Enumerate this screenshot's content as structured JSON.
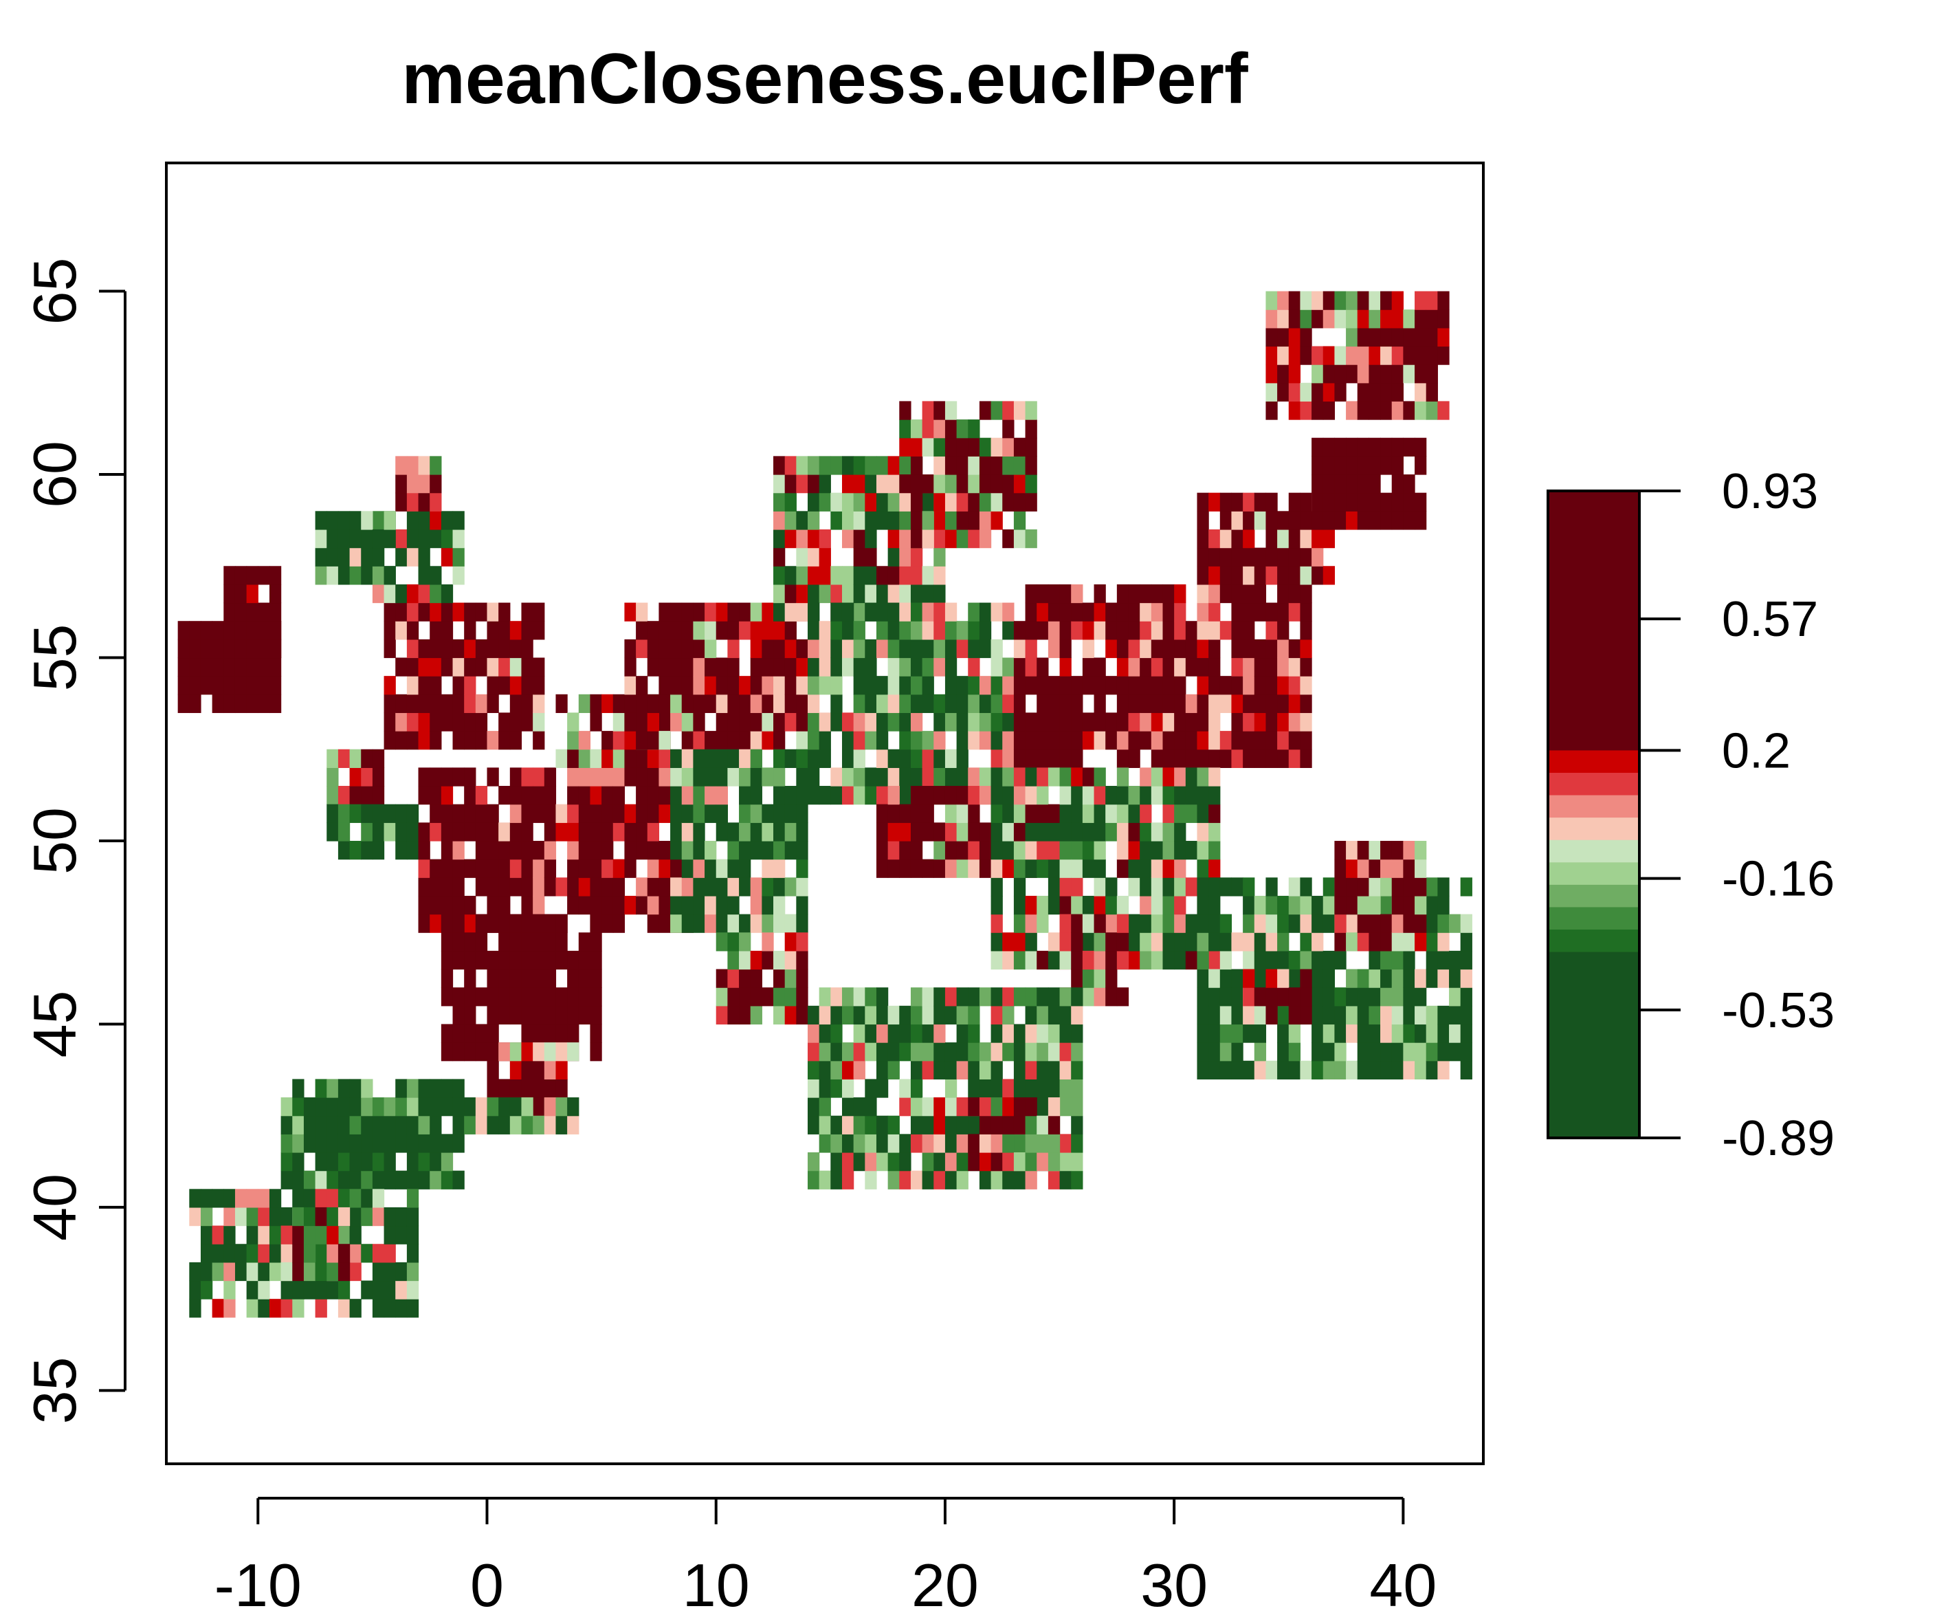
{
  "chart_data": {
    "type": "heatmap",
    "title": "meanCloseness.euclPerf",
    "xlabel": "",
    "ylabel": "",
    "xlim": [
      -14,
      43.5
    ],
    "ylim": [
      33,
      68.5
    ],
    "x_ticks": [
      -10,
      0,
      10,
      20,
      30,
      40
    ],
    "x_tick_labels": [
      "-10",
      "0",
      "10",
      "20",
      "30",
      "40"
    ],
    "y_ticks": [
      35,
      40,
      45,
      50,
      55,
      60,
      65
    ],
    "y_tick_labels": [
      "35",
      "40",
      "45",
      "50",
      "55",
      "60",
      "65"
    ],
    "grid": false,
    "legend_position": "right",
    "colorbar": {
      "ticks": [
        0.93,
        0.57,
        0.2,
        -0.16,
        -0.53,
        -0.89
      ],
      "tick_labels": [
        "0.93",
        "0.57",
        "0.2",
        "-0.16",
        "-0.53",
        "-0.89"
      ],
      "value_range": [
        -0.89,
        0.93
      ],
      "bands": [
        {
          "from": 0.2,
          "to": 0.93,
          "color": "#67000d"
        },
        {
          "from": 0.137,
          "to": 0.2,
          "color": "#cc0000"
        },
        {
          "from": 0.074,
          "to": 0.137,
          "color": "#e0393e"
        },
        {
          "from": 0.011,
          "to": 0.074,
          "color": "#ef8a82"
        },
        {
          "from": -0.052,
          "to": 0.011,
          "color": "#f8c6b4"
        },
        {
          "from": -0.115,
          "to": -0.052,
          "color": "#c7e4bd"
        },
        {
          "from": -0.178,
          "to": -0.115,
          "color": "#a0d190"
        },
        {
          "from": -0.241,
          "to": -0.178,
          "color": "#6fad63"
        },
        {
          "from": -0.304,
          "to": -0.241,
          "color": "#3f8b3c"
        },
        {
          "from": -0.367,
          "to": -0.304,
          "color": "#1f6e23"
        },
        {
          "from": -0.89,
          "to": -0.367,
          "color": "#16541f"
        }
      ]
    },
    "cell_size_deg": 0.5,
    "regions": [
      {
        "lon": [
          -13.5,
          -9
        ],
        "lat": [
          53.5,
          56
        ],
        "level": 0.8
      },
      {
        "lon": [
          -11.5,
          -9
        ],
        "lat": [
          55,
          57.5
        ],
        "level": 0.6
      },
      {
        "lon": [
          -4.5,
          2.5
        ],
        "lat": [
          52.5,
          56.5
        ],
        "level": 0.35
      },
      {
        "lon": [
          -5,
          -1
        ],
        "lat": [
          56.5,
          59
        ],
        "level": -0.2
      },
      {
        "lon": [
          -4,
          -2
        ],
        "lat": [
          59,
          60.5
        ],
        "level": 0.05
      },
      {
        "lon": [
          -7.5,
          -4
        ],
        "lat": [
          57,
          59
        ],
        "level": -0.4
      },
      {
        "lon": [
          -7,
          -4.5
        ],
        "lat": [
          51,
          52.5
        ],
        "level": 0.25
      },
      {
        "lon": [
          -7,
          -3
        ],
        "lat": [
          49.5,
          51
        ],
        "level": -0.6
      },
      {
        "lon": [
          -3,
          9
        ],
        "lat": [
          47.5,
          52
        ],
        "level": 0.45
      },
      {
        "lon": [
          -2,
          5
        ],
        "lat": [
          44,
          48
        ],
        "level": 0.7
      },
      {
        "lon": [
          0,
          4
        ],
        "lat": [
          42.5,
          44.5
        ],
        "level": 0.25
      },
      {
        "lon": [
          3,
          8
        ],
        "lat": [
          52,
          54
        ],
        "level": 0.2
      },
      {
        "lon": [
          6,
          14
        ],
        "lat": [
          52.5,
          56.5
        ],
        "level": 0.3
      },
      {
        "lon": [
          8,
          14
        ],
        "lat": [
          47.5,
          52.5
        ],
        "level": -0.4
      },
      {
        "lon": [
          12.5,
          20
        ],
        "lat": [
          56,
          60.5
        ],
        "level": -0.15
      },
      {
        "lon": [
          18,
          24
        ],
        "lat": [
          58,
          62
        ],
        "level": 0.1
      },
      {
        "lon": [
          14,
          23
        ],
        "lat": [
          51,
          56.5
        ],
        "level": -0.3
      },
      {
        "lon": [
          17,
          24
        ],
        "lat": [
          49,
          51.5
        ],
        "level": 0.25
      },
      {
        "lon": [
          23,
          36
        ],
        "lat": [
          52,
          57
        ],
        "level": 0.4
      },
      {
        "lon": [
          31,
          37
        ],
        "lat": [
          57,
          59.5
        ],
        "level": 0.35
      },
      {
        "lon": [
          22,
          32
        ],
        "lat": [
          46.5,
          52
        ],
        "level": -0.2
      },
      {
        "lon": [
          25,
          28
        ],
        "lat": [
          45.5,
          48
        ],
        "level": 0.2
      },
      {
        "lon": [
          31,
          43
        ],
        "lat": [
          43.5,
          49
        ],
        "level": -0.45
      },
      {
        "lon": [
          33,
          36
        ],
        "lat": [
          45,
          46.5
        ],
        "level": 0.35
      },
      {
        "lon": [
          37,
          41
        ],
        "lat": [
          47,
          50
        ],
        "level": 0.3
      },
      {
        "lon": [
          10,
          14
        ],
        "lat": [
          45,
          47.5
        ],
        "level": 0.1
      },
      {
        "lon": [
          14,
          26
        ],
        "lat": [
          40.5,
          46
        ],
        "level": -0.3
      },
      {
        "lon": [
          21,
          25
        ],
        "lat": [
          41,
          43
        ],
        "level": 0.15
      },
      {
        "lon": [
          -9,
          -1
        ],
        "lat": [
          40.5,
          43.5
        ],
        "level": -0.55
      },
      {
        "lon": [
          -1,
          4
        ],
        "lat": [
          42,
          43
        ],
        "level": -0.4
      },
      {
        "lon": [
          -13,
          -3
        ],
        "lat": [
          37,
          40.5
        ],
        "level": -0.3
      },
      {
        "lon": [
          -9,
          -6
        ],
        "lat": [
          38,
          40
        ],
        "level": 0.1
      },
      {
        "lon": [
          34,
          42
        ],
        "lat": [
          61.5,
          65
        ],
        "level": 0.2
      },
      {
        "lon": [
          36,
          41
        ],
        "lat": [
          58.5,
          61
        ],
        "level": 0.6
      }
    ]
  }
}
